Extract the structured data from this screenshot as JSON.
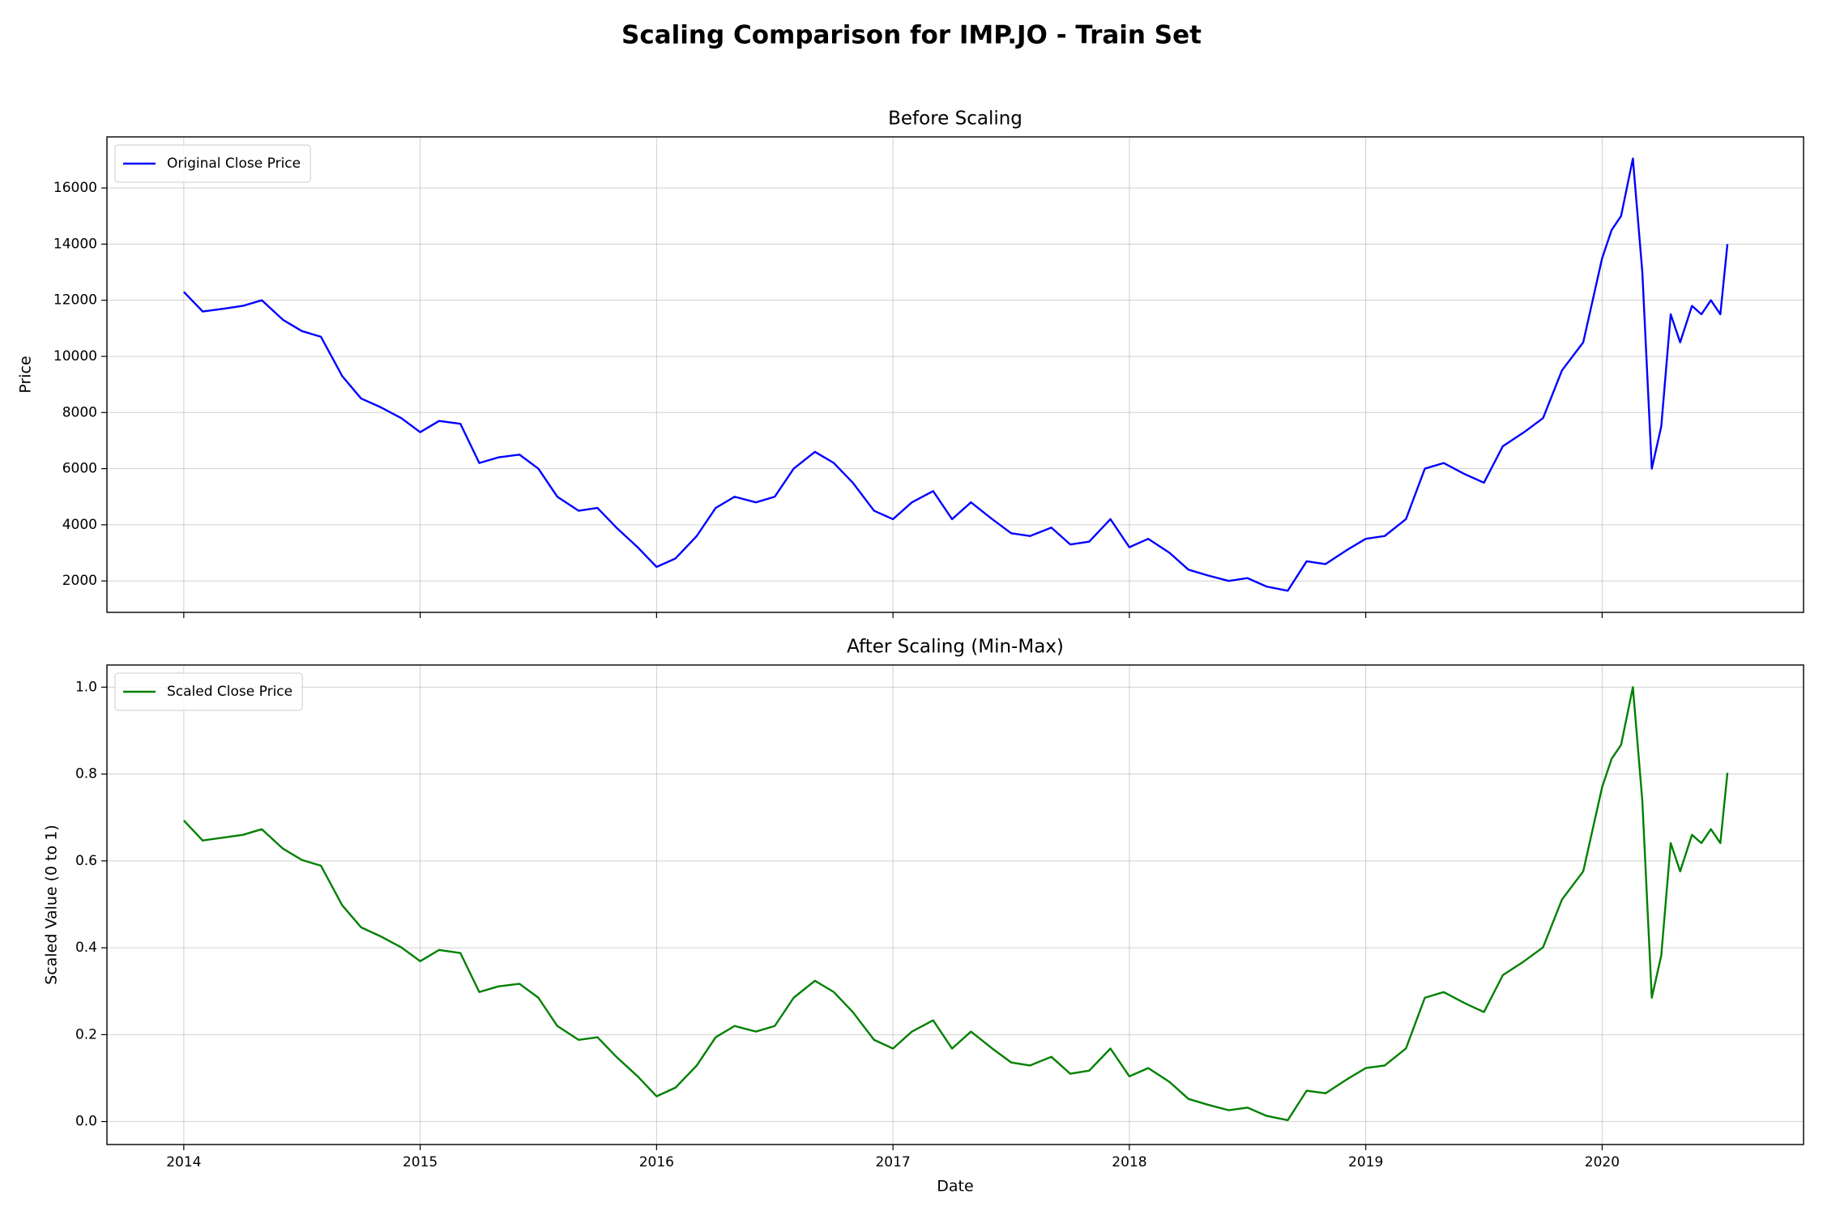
{
  "title": "Scaling Comparison for IMP.JO - Train Set",
  "chart_data": [
    {
      "type": "line",
      "title": "Before Scaling",
      "ylabel": "Price",
      "x": [
        2014.0,
        2014.08,
        2014.17,
        2014.25,
        2014.33,
        2014.42,
        2014.5,
        2014.58,
        2014.67,
        2014.75,
        2014.83,
        2014.92,
        2015.0,
        2015.08,
        2015.17,
        2015.25,
        2015.33,
        2015.42,
        2015.5,
        2015.58,
        2015.67,
        2015.75,
        2015.83,
        2015.92,
        2016.0,
        2016.08,
        2016.17,
        2016.25,
        2016.33,
        2016.42,
        2016.5,
        2016.58,
        2016.67,
        2016.75,
        2016.83,
        2016.92,
        2017.0,
        2017.08,
        2017.17,
        2017.25,
        2017.33,
        2017.42,
        2017.5,
        2017.58,
        2017.67,
        2017.75,
        2017.83,
        2017.92,
        2018.0,
        2018.08,
        2018.17,
        2018.25,
        2018.33,
        2018.42,
        2018.5,
        2018.58,
        2018.67,
        2018.75,
        2018.83,
        2018.92,
        2019.0,
        2019.08,
        2019.17,
        2019.25,
        2019.33,
        2019.42,
        2019.5,
        2019.58,
        2019.67,
        2019.75,
        2019.83,
        2019.92,
        2020.0,
        2020.04,
        2020.08,
        2020.13,
        2020.17,
        2020.21,
        2020.25,
        2020.29,
        2020.33,
        2020.38,
        2020.42,
        2020.46,
        2020.5,
        2020.53
      ],
      "series": [
        {
          "name": "Original Close Price",
          "color": "#0000ff",
          "values": [
            12300,
            11600,
            11700,
            11800,
            12000,
            11300,
            10900,
            10700,
            9300,
            8500,
            8200,
            7800,
            7300,
            7700,
            7600,
            6200,
            6400,
            6500,
            6000,
            5000,
            4500,
            4600,
            3900,
            3200,
            2500,
            2800,
            3600,
            4600,
            5000,
            4800,
            5000,
            6000,
            6600,
            6200,
            5500,
            4500,
            4200,
            4800,
            5200,
            4200,
            4800,
            4200,
            3700,
            3600,
            3900,
            3300,
            3400,
            4200,
            3200,
            3500,
            3000,
            2400,
            2200,
            2000,
            2100,
            1800,
            1650,
            2700,
            2600,
            3100,
            3500,
            3600,
            4200,
            6000,
            6200,
            5800,
            5500,
            6800,
            7300,
            7800,
            9500,
            10500,
            13500,
            14500,
            15000,
            17050,
            13000,
            6000,
            7500,
            11500,
            10500,
            11800,
            11500,
            12000,
            11500,
            14000
          ]
        }
      ],
      "xlim": [
        2013.675,
        2020.852
      ],
      "xticks": [
        2014,
        2015,
        2016,
        2017,
        2018,
        2019,
        2020
      ],
      "show_xtick_labels": false,
      "ylim": [
        880,
        17820
      ],
      "yticks": [
        2000,
        4000,
        6000,
        8000,
        10000,
        12000,
        14000,
        16000
      ],
      "grid": true,
      "legend": "upper-left"
    },
    {
      "type": "line",
      "title": "After Scaling (Min-Max)",
      "xlabel": "Date",
      "ylabel": "Scaled Value (0 to 1)",
      "x": [
        2014.0,
        2014.08,
        2014.17,
        2014.25,
        2014.33,
        2014.42,
        2014.5,
        2014.58,
        2014.67,
        2014.75,
        2014.83,
        2014.92,
        2015.0,
        2015.08,
        2015.17,
        2015.25,
        2015.33,
        2015.42,
        2015.5,
        2015.58,
        2015.67,
        2015.75,
        2015.83,
        2015.92,
        2016.0,
        2016.08,
        2016.17,
        2016.25,
        2016.33,
        2016.42,
        2016.5,
        2016.58,
        2016.67,
        2016.75,
        2016.83,
        2016.92,
        2017.0,
        2017.08,
        2017.17,
        2017.25,
        2017.33,
        2017.42,
        2017.5,
        2017.58,
        2017.67,
        2017.75,
        2017.83,
        2017.92,
        2018.0,
        2018.08,
        2018.17,
        2018.25,
        2018.33,
        2018.42,
        2018.5,
        2018.58,
        2018.67,
        2018.75,
        2018.83,
        2018.92,
        2019.0,
        2019.08,
        2019.17,
        2019.25,
        2019.33,
        2019.42,
        2019.5,
        2019.58,
        2019.67,
        2019.75,
        2019.83,
        2019.92,
        2020.0,
        2020.04,
        2020.08,
        2020.13,
        2020.17,
        2020.21,
        2020.25,
        2020.29,
        2020.33,
        2020.38,
        2020.42,
        2020.46,
        2020.5,
        2020.53
      ],
      "series": [
        {
          "name": "Scaled Close Price",
          "color": "#008000",
          "values": [
            0.693,
            0.647,
            0.654,
            0.66,
            0.673,
            0.628,
            0.602,
            0.589,
            0.498,
            0.447,
            0.427,
            0.401,
            0.369,
            0.395,
            0.388,
            0.298,
            0.311,
            0.317,
            0.285,
            0.22,
            0.188,
            0.194,
            0.149,
            0.104,
            0.058,
            0.078,
            0.129,
            0.194,
            0.22,
            0.207,
            0.22,
            0.285,
            0.324,
            0.298,
            0.252,
            0.188,
            0.168,
            0.207,
            0.233,
            0.168,
            0.207,
            0.168,
            0.136,
            0.129,
            0.149,
            0.11,
            0.117,
            0.168,
            0.104,
            0.123,
            0.091,
            0.052,
            0.039,
            0.026,
            0.032,
            0.013,
            0.003,
            0.071,
            0.065,
            0.097,
            0.123,
            0.129,
            0.168,
            0.285,
            0.298,
            0.272,
            0.252,
            0.337,
            0.369,
            0.401,
            0.511,
            0.576,
            0.77,
            0.835,
            0.867,
            1.0,
            0.738,
            0.285,
            0.382,
            0.641,
            0.576,
            0.66,
            0.641,
            0.673,
            0.641,
            0.803
          ]
        }
      ],
      "xlim": [
        2013.675,
        2020.852
      ],
      "xticks": [
        2014,
        2015,
        2016,
        2017,
        2018,
        2019,
        2020
      ],
      "show_xtick_labels": true,
      "ylim": [
        -0.053,
        1.051
      ],
      "yticks": [
        {
          "value": 0,
          "label": "0.0"
        },
        0.2,
        0.4,
        0.6,
        0.8,
        {
          "value": 1,
          "label": "1.0"
        }
      ],
      "grid": true,
      "legend": "upper-left"
    }
  ]
}
